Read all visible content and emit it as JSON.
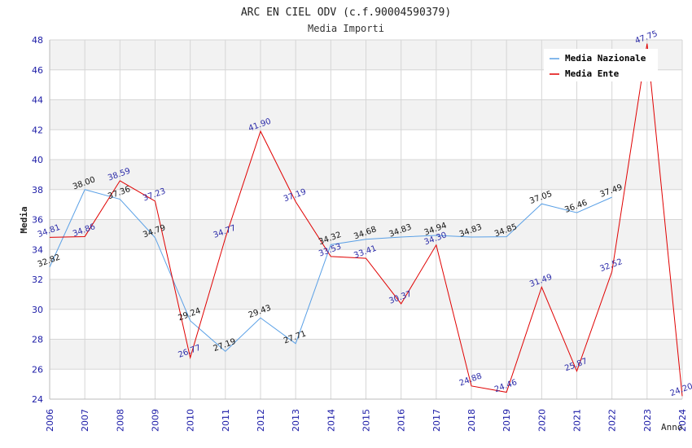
{
  "colors": {
    "nazionale": "#5aa0e6",
    "ente": "#e00000",
    "tick_text": "#1a1aa6",
    "band": "#f2f2f2",
    "grid": "#d6d6d6"
  },
  "chart_data": {
    "type": "line",
    "title": "ARC EN CIEL ODV (c.f.90004590379)",
    "subtitle": "Media Importi",
    "xlabel": "Anno",
    "ylabel": "Media",
    "ylim": [
      24,
      48
    ],
    "y_ticks": [
      "24",
      "26",
      "28",
      "30",
      "32",
      "34",
      "36",
      "38",
      "40",
      "42",
      "44",
      "46",
      "48"
    ],
    "categories": [
      "2006",
      "2007",
      "2008",
      "2009",
      "2010",
      "2011",
      "2012",
      "2013",
      "2014",
      "2015",
      "2016",
      "2017",
      "2018",
      "2019",
      "2020",
      "2021",
      "2022",
      "2023",
      "2024"
    ],
    "series": [
      {
        "name": "Media Nazionale",
        "color": "#5aa0e6",
        "values": [
          32.82,
          38.0,
          37.36,
          34.79,
          29.24,
          27.19,
          29.43,
          27.71,
          34.32,
          34.68,
          34.83,
          34.94,
          34.83,
          34.85,
          37.05,
          36.46,
          37.49,
          null,
          null
        ],
        "labels": [
          "32.82",
          "38.00",
          "37.36",
          "34.79",
          "29.24",
          "27.19",
          "29.43",
          "27.71",
          "34.32",
          "34.68",
          "34.83",
          "34.94",
          "34.83",
          "34.85",
          "37.05",
          "36.46",
          "37.49",
          null,
          null
        ]
      },
      {
        "name": "Media Ente",
        "color": "#e00000",
        "values": [
          34.81,
          34.86,
          38.59,
          37.23,
          26.77,
          34.77,
          41.9,
          37.19,
          33.53,
          33.41,
          30.37,
          34.3,
          24.88,
          24.46,
          31.49,
          25.87,
          32.52,
          47.75,
          24.2
        ],
        "labels": [
          "34.81",
          "34.86",
          "38.59",
          "37.23",
          "26.77",
          "34.77",
          "41.90",
          "37.19",
          "33.53",
          "33.41",
          "30.37",
          "34.30",
          "24.88",
          "24.46",
          "31.49",
          "25.87",
          "32.52",
          "47.75",
          "24.20"
        ]
      }
    ],
    "legend": {
      "position": "top-right",
      "entries": [
        "Media Nazionale",
        "Media Ente"
      ]
    }
  }
}
